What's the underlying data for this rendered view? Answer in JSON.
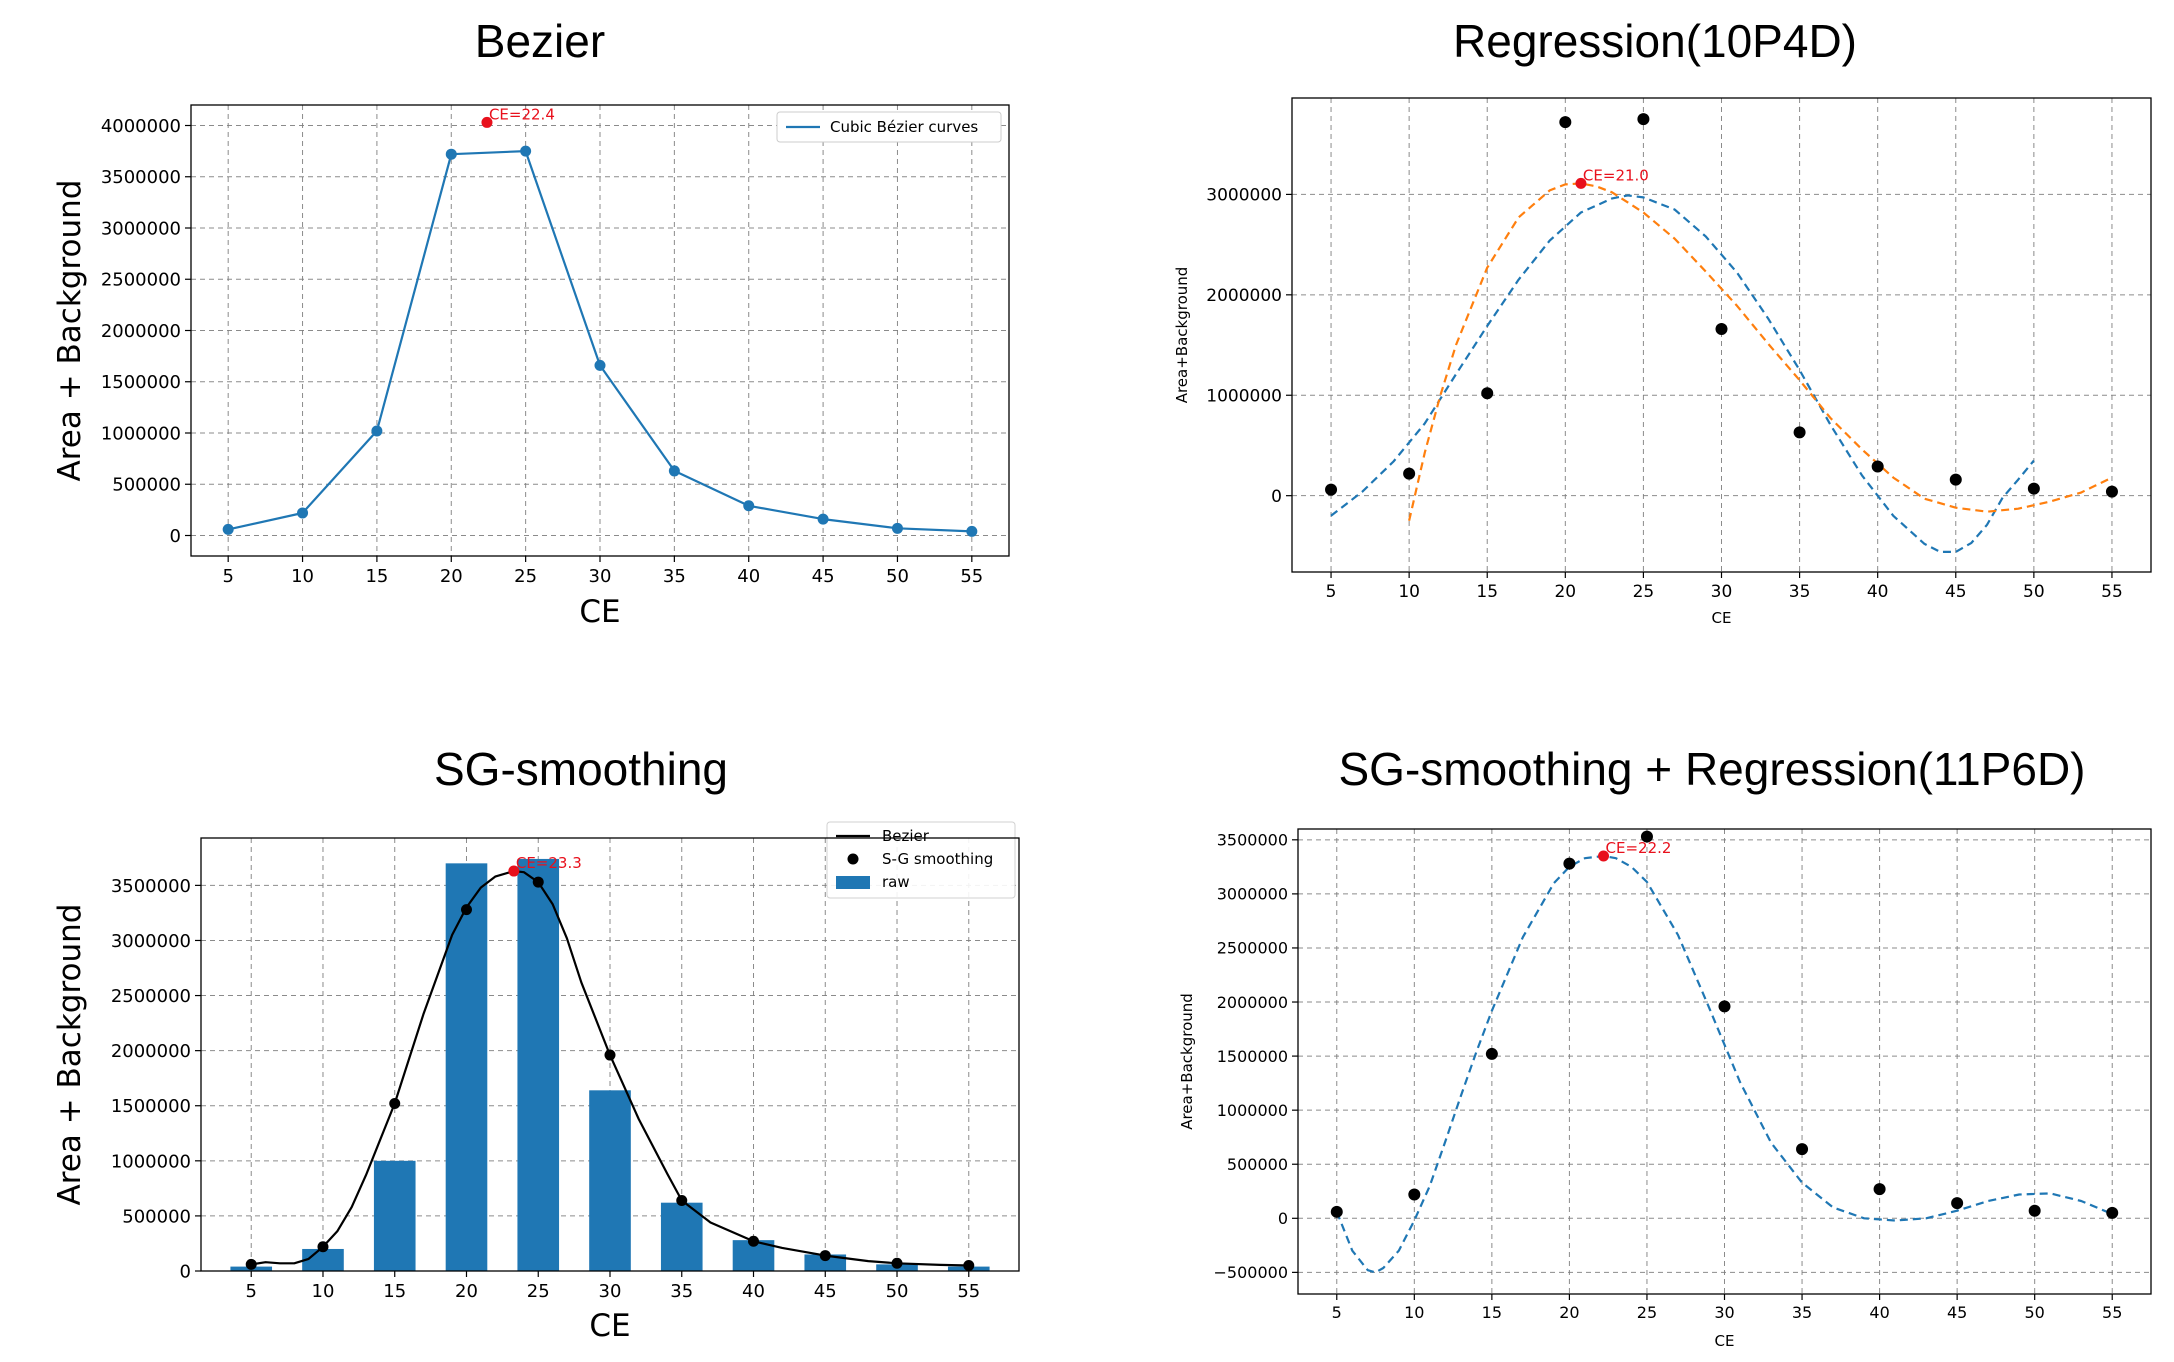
{
  "chart_data": [
    {
      "type": "line",
      "title": "Bezier",
      "xlabel": "CE",
      "ylabel": "Area + Background",
      "xlim": [
        2.5,
        57.5
      ],
      "ylim": [
        -200000,
        4200000
      ],
      "xticks": [
        5,
        10,
        15,
        20,
        25,
        30,
        35,
        40,
        45,
        50,
        55
      ],
      "yticks": [
        0,
        500000,
        1000000,
        1500000,
        2000000,
        2500000,
        3000000,
        3500000,
        4000000
      ],
      "grid": true,
      "legend_position": "top-right",
      "colors": {
        "series": "#1f77b4",
        "peak": "#e8101c"
      },
      "series": [
        {
          "name": "Cubic Bézier curves",
          "style": "solid-smooth-with-markers",
          "x": [
            5,
            10,
            15,
            20,
            25,
            30,
            35,
            40,
            45,
            50,
            55
          ],
          "y": [
            60000,
            220000,
            1020000,
            3720000,
            3750000,
            1660000,
            630000,
            290000,
            160000,
            70000,
            40000
          ]
        }
      ],
      "peak": {
        "x": 22.4,
        "y": 4030000,
        "label": "CE=22.4"
      }
    },
    {
      "type": "scatter",
      "title": "Regression(10P4D)",
      "xlabel": "CE",
      "ylabel": "Area+Background",
      "xlim": [
        2.5,
        57.5
      ],
      "ylim": [
        -760000,
        3960000
      ],
      "xticks": [
        5,
        10,
        15,
        20,
        25,
        30,
        35,
        40,
        45,
        50,
        55
      ],
      "yticks": [
        0,
        1000000,
        2000000,
        3000000
      ],
      "grid": true,
      "colors": {
        "points": "#000000",
        "fit_a": "#1f77b4",
        "fit_b": "#ff7f0e",
        "peak": "#e8101c"
      },
      "points": {
        "x": [
          5,
          10,
          15,
          20,
          25,
          30,
          35,
          40,
          45,
          50,
          55
        ],
        "y": [
          60000,
          220000,
          1020000,
          3720000,
          3750000,
          1660000,
          630000,
          290000,
          160000,
          70000,
          40000
        ]
      },
      "series": [
        {
          "style": "dashed",
          "x": [
            5,
            7,
            9,
            11,
            13,
            15,
            17,
            19,
            21,
            23,
            24,
            25,
            27,
            29,
            31,
            33,
            35,
            37,
            39,
            41,
            43,
            44,
            45,
            46,
            47,
            48,
            49,
            50
          ],
          "y": [
            -200000,
            40000,
            340000,
            720000,
            1210000,
            1690000,
            2150000,
            2540000,
            2820000,
            2960000,
            2990000,
            2970000,
            2850000,
            2580000,
            2220000,
            1760000,
            1250000,
            700000,
            200000,
            -200000,
            -480000,
            -560000,
            -560000,
            -470000,
            -290000,
            -20000,
            160000,
            350000
          ]
        },
        {
          "style": "dashed",
          "x": [
            10,
            11,
            12,
            13,
            15,
            17,
            19,
            20,
            21,
            22,
            23,
            25,
            27,
            29,
            31,
            33,
            35,
            37,
            39,
            41,
            43,
            45,
            47,
            49,
            51,
            53,
            55
          ],
          "y": [
            -250000,
            430000,
            1000000,
            1500000,
            2270000,
            2770000,
            3040000,
            3100000,
            3110000,
            3080000,
            3020000,
            2820000,
            2560000,
            2230000,
            1890000,
            1510000,
            1150000,
            770000,
            460000,
            180000,
            -30000,
            -120000,
            -160000,
            -130000,
            -60000,
            30000,
            180000
          ]
        }
      ],
      "peak": {
        "x": 21.0,
        "y": 3110000,
        "label": "CE=21.0"
      }
    },
    {
      "type": "bar",
      "title": "SG-smoothing",
      "xlabel": "CE",
      "ylabel": "Area + Background",
      "xlim": [
        1.5,
        58.5
      ],
      "ylim": [
        0,
        3930000
      ],
      "xticks": [
        5,
        10,
        15,
        20,
        25,
        30,
        35,
        40,
        45,
        50,
        55
      ],
      "yticks": [
        0,
        500000,
        1000000,
        1500000,
        2000000,
        2500000,
        3000000,
        3500000
      ],
      "grid": true,
      "legend_position": "top-right",
      "colors": {
        "bars": "#1f77b4",
        "line": "#000000",
        "points": "#000000",
        "peak": "#e8101c"
      },
      "legend": [
        "Bezier",
        "S-G smoothing",
        "raw"
      ],
      "categories": [
        5,
        10,
        15,
        20,
        25,
        30,
        35,
        40,
        45,
        50,
        55
      ],
      "bars": {
        "name": "raw",
        "values": [
          40000,
          200000,
          1000000,
          3700000,
          3740000,
          1640000,
          620000,
          280000,
          150000,
          60000,
          40000
        ]
      },
      "smoothing": {
        "name": "S-G smoothing",
        "values": [
          60000,
          220000,
          1520000,
          3280000,
          3530000,
          1960000,
          640000,
          270000,
          140000,
          70000,
          50000
        ]
      },
      "bezier": {
        "name": "Bezier",
        "x": [
          5,
          6,
          7,
          8,
          9,
          10,
          11,
          12,
          13,
          15,
          17,
          19,
          20,
          21,
          22,
          23.3,
          24,
          25,
          26,
          27,
          28,
          30,
          32,
          34,
          35,
          37,
          40,
          42,
          45,
          48,
          50,
          53,
          55
        ],
        "y": [
          60000,
          80000,
          70000,
          70000,
          110000,
          220000,
          360000,
          580000,
          870000,
          1520000,
          2330000,
          3050000,
          3300000,
          3480000,
          3580000,
          3630000,
          3620000,
          3530000,
          3330000,
          3020000,
          2620000,
          1960000,
          1380000,
          880000,
          640000,
          440000,
          270000,
          210000,
          140000,
          90000,
          70000,
          55000,
          50000
        ]
      },
      "peak": {
        "x": 23.3,
        "y": 3630000,
        "label": "CE=23.3"
      }
    },
    {
      "type": "scatter",
      "title": "SG-smoothing + Regression(11P6D)",
      "xlabel": "CE",
      "ylabel": "Area+Background",
      "xlim": [
        2.5,
        57.5
      ],
      "ylim": [
        -700000,
        3600000
      ],
      "xticks": [
        5,
        10,
        15,
        20,
        25,
        30,
        35,
        40,
        45,
        50,
        55
      ],
      "yticks": [
        -500000,
        0,
        500000,
        1000000,
        1500000,
        2000000,
        2500000,
        3000000,
        3500000
      ],
      "grid": true,
      "colors": {
        "points": "#000000",
        "fit": "#1f77b4",
        "peak": "#e8101c"
      },
      "points": {
        "x": [
          5,
          10,
          15,
          20,
          25,
          30,
          35,
          40,
          45,
          50,
          55
        ],
        "y": [
          60000,
          220000,
          1520000,
          3280000,
          3530000,
          1960000,
          640000,
          270000,
          140000,
          70000,
          50000
        ]
      },
      "series": [
        {
          "style": "dashed",
          "x": [
            5,
            6,
            7,
            7.5,
            8,
            9,
            10,
            11,
            12,
            13,
            14,
            15,
            17,
            19,
            20,
            21,
            22.2,
            23,
            24,
            25,
            27,
            29,
            31,
            33,
            35,
            37,
            39,
            41,
            43,
            45,
            47,
            49,
            51,
            53,
            55
          ],
          "y": [
            60000,
            -300000,
            -480000,
            -500000,
            -460000,
            -300000,
            -20000,
            300000,
            710000,
            1130000,
            1540000,
            1920000,
            2600000,
            3100000,
            3250000,
            3330000,
            3350000,
            3330000,
            3250000,
            3110000,
            2620000,
            1950000,
            1260000,
            700000,
            330000,
            100000,
            0,
            -20000,
            0,
            70000,
            160000,
            220000,
            230000,
            160000,
            40000
          ]
        }
      ],
      "peak": {
        "x": 22.2,
        "y": 3350000,
        "label": "CE=22.2"
      }
    }
  ]
}
